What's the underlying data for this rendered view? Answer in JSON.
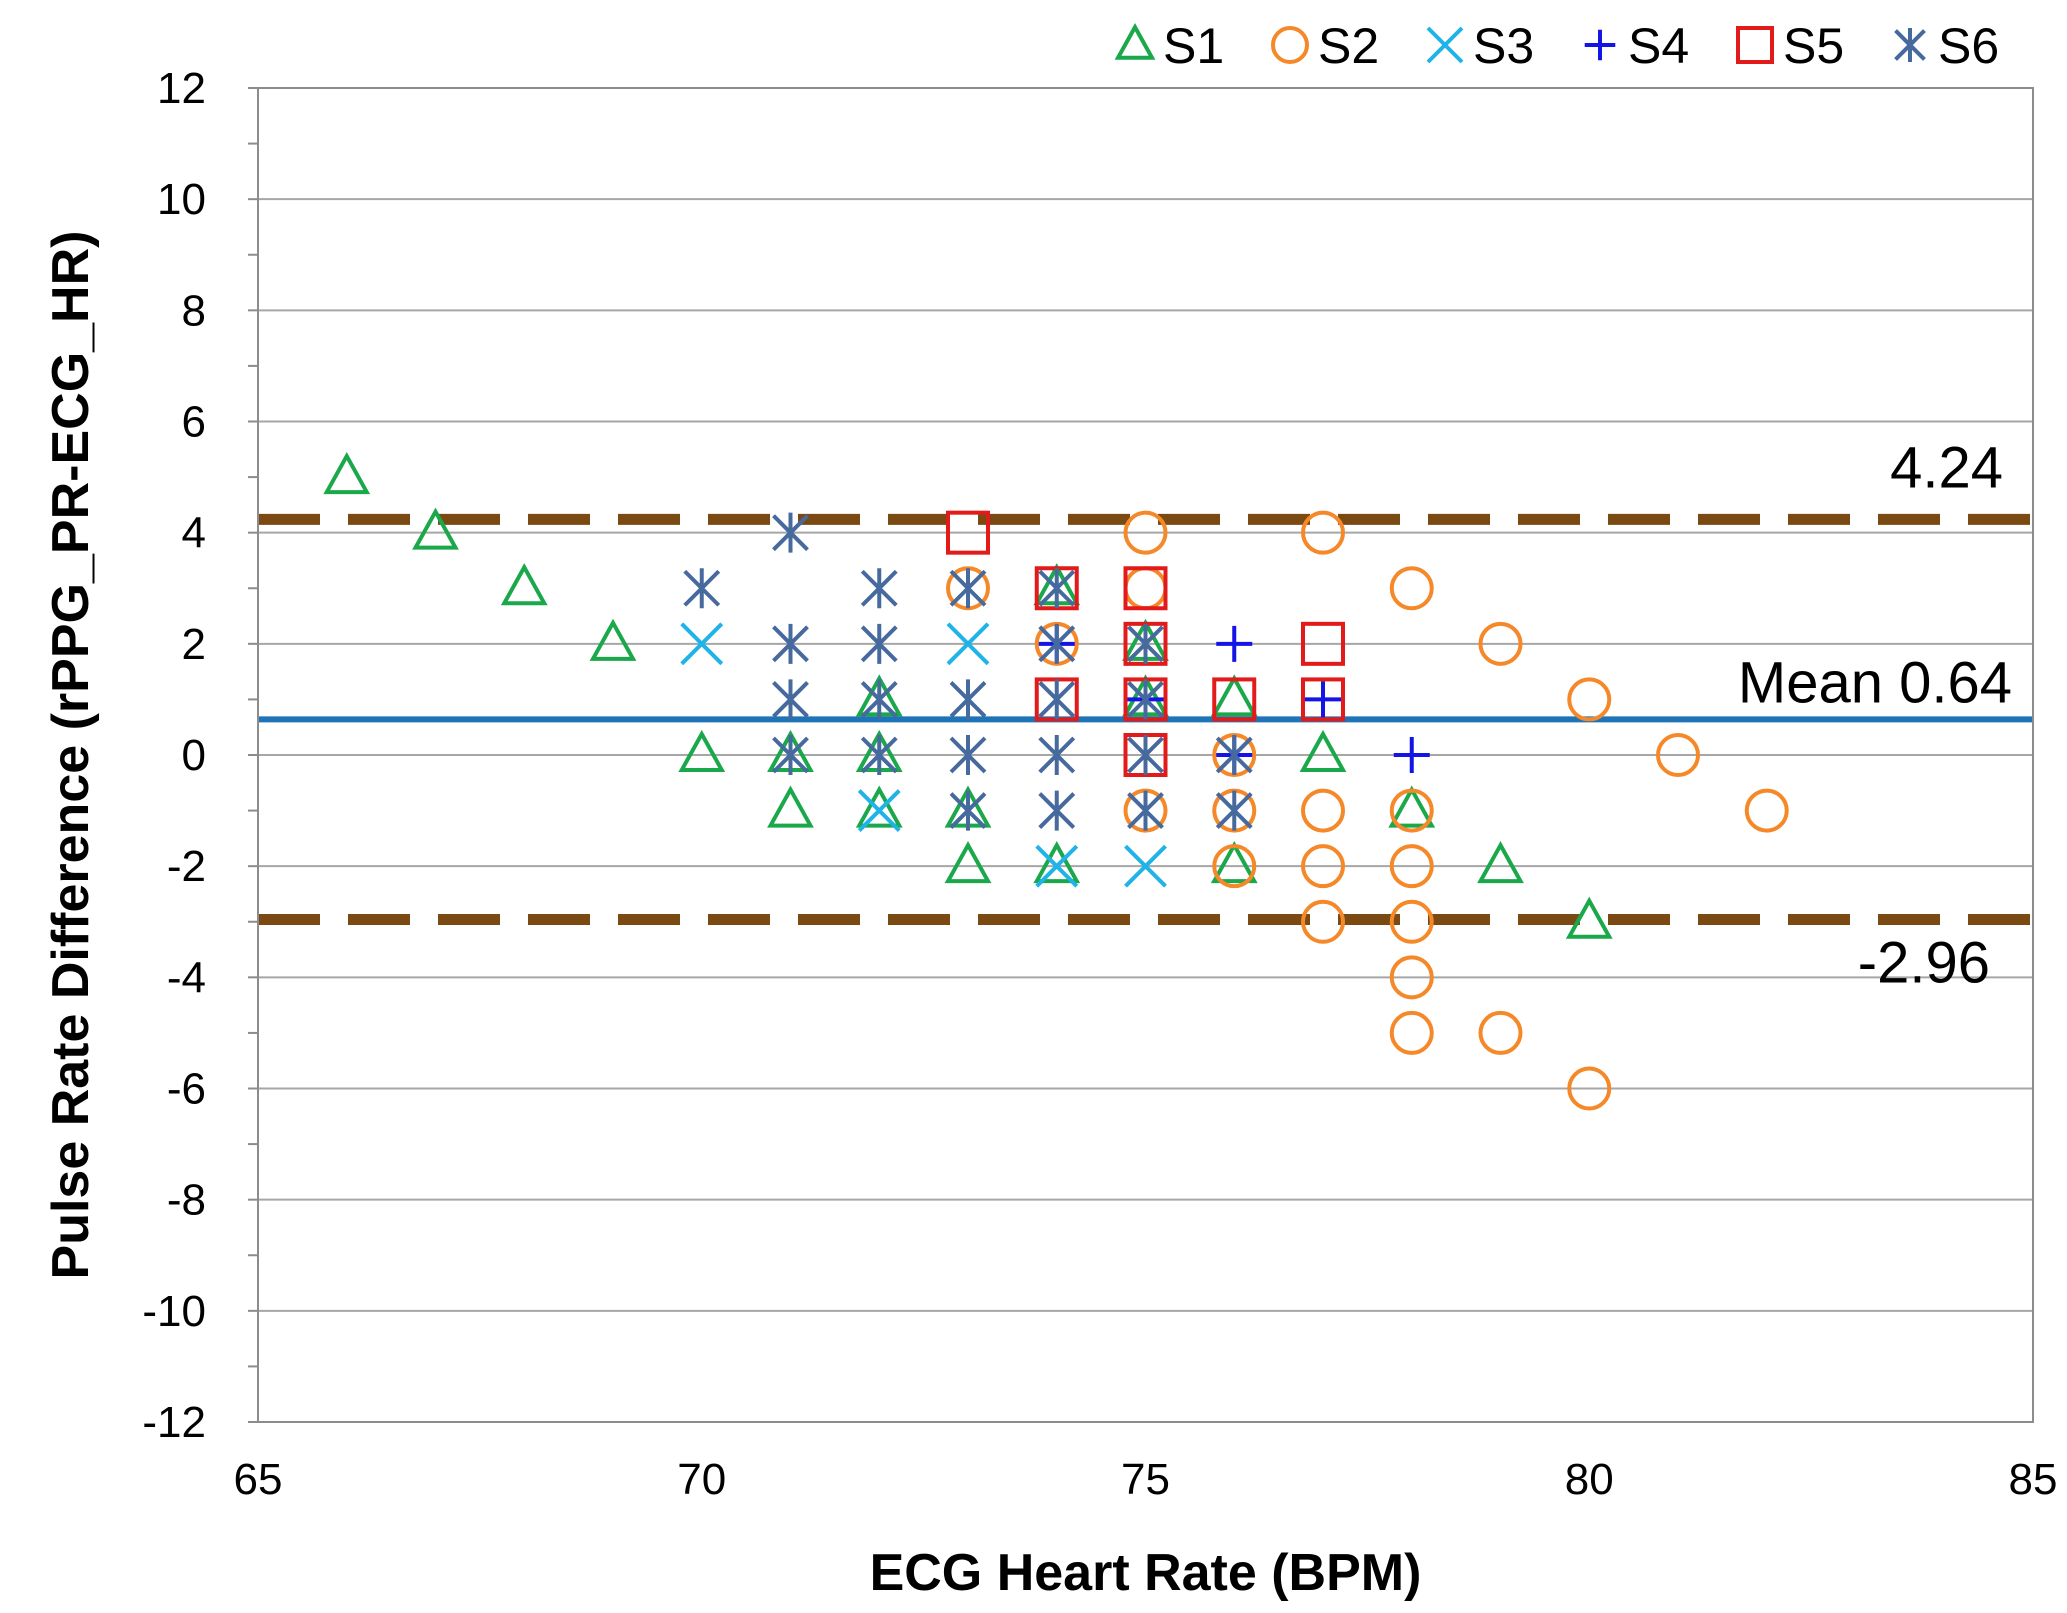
{
  "chart_data": {
    "type": "scatter",
    "title": "",
    "xlabel": "ECG Heart Rate (BPM)",
    "ylabel": "Pulse Rate Difference (rPPG_PR-ECG_HR)",
    "xlim": [
      65,
      85
    ],
    "ylim": [
      -12,
      12
    ],
    "xticks": [
      65,
      70,
      75,
      80,
      85
    ],
    "yticks": [
      -12,
      -10,
      -8,
      -6,
      -4,
      -2,
      0,
      2,
      4,
      6,
      8,
      10,
      12
    ],
    "grid": "horizontal",
    "legend_position": "top-right",
    "series": [
      {
        "name": "S1",
        "marker": "triangle",
        "color": "#1aa84a",
        "points": [
          [
            66,
            5
          ],
          [
            67,
            4
          ],
          [
            68,
            3
          ],
          [
            69,
            2
          ],
          [
            70,
            0
          ],
          [
            71,
            0
          ],
          [
            71,
            -1
          ],
          [
            72,
            1
          ],
          [
            72,
            0
          ],
          [
            72,
            -1
          ],
          [
            73,
            -1
          ],
          [
            73,
            -2
          ],
          [
            74,
            3
          ],
          [
            74,
            -2
          ],
          [
            75,
            2
          ],
          [
            75,
            1
          ],
          [
            76,
            1
          ],
          [
            76,
            -2
          ],
          [
            77,
            0
          ],
          [
            78,
            -1
          ],
          [
            79,
            -2
          ],
          [
            80,
            -3
          ]
        ]
      },
      {
        "name": "S2",
        "marker": "circle",
        "color": "#f5892a",
        "points": [
          [
            73,
            3
          ],
          [
            74,
            2
          ],
          [
            75,
            4
          ],
          [
            75,
            3
          ],
          [
            75,
            -1
          ],
          [
            76,
            0
          ],
          [
            76,
            -1
          ],
          [
            76,
            -2
          ],
          [
            77,
            4
          ],
          [
            77,
            -1
          ],
          [
            77,
            -2
          ],
          [
            77,
            -3
          ],
          [
            78,
            3
          ],
          [
            78,
            -1
          ],
          [
            78,
            -2
          ],
          [
            78,
            -3
          ],
          [
            78,
            -4
          ],
          [
            78,
            -5
          ],
          [
            79,
            2
          ],
          [
            79,
            -5
          ],
          [
            80,
            1
          ],
          [
            80,
            -6
          ],
          [
            81,
            0
          ],
          [
            82,
            -1
          ]
        ]
      },
      {
        "name": "S3",
        "marker": "x",
        "color": "#1fb3e8",
        "points": [
          [
            70,
            2
          ],
          [
            72,
            -1
          ],
          [
            73,
            2
          ],
          [
            74,
            -2
          ],
          [
            75,
            -2
          ]
        ]
      },
      {
        "name": "S4",
        "marker": "plus",
        "color": "#1414e6",
        "points": [
          [
            74,
            2
          ],
          [
            75,
            1
          ],
          [
            76,
            2
          ],
          [
            76,
            0
          ],
          [
            77,
            1
          ],
          [
            78,
            0
          ]
        ]
      },
      {
        "name": "S5",
        "marker": "square",
        "color": "#e21a1a",
        "points": [
          [
            73,
            4
          ],
          [
            74,
            3
          ],
          [
            74,
            1
          ],
          [
            75,
            3
          ],
          [
            75,
            2
          ],
          [
            75,
            1
          ],
          [
            75,
            0
          ],
          [
            76,
            1
          ],
          [
            77,
            2
          ],
          [
            77,
            1
          ]
        ]
      },
      {
        "name": "S6",
        "marker": "asterisk",
        "color": "#46699e",
        "points": [
          [
            70,
            3
          ],
          [
            71,
            4
          ],
          [
            71,
            2
          ],
          [
            71,
            1
          ],
          [
            71,
            0
          ],
          [
            72,
            3
          ],
          [
            72,
            2
          ],
          [
            72,
            1
          ],
          [
            72,
            0
          ],
          [
            73,
            3
          ],
          [
            73,
            1
          ],
          [
            73,
            0
          ],
          [
            73,
            -1
          ],
          [
            74,
            3
          ],
          [
            74,
            2
          ],
          [
            74,
            1
          ],
          [
            74,
            0
          ],
          [
            74,
            -1
          ],
          [
            75,
            2
          ],
          [
            75,
            1
          ],
          [
            75,
            0
          ],
          [
            75,
            -1
          ],
          [
            76,
            0
          ],
          [
            76,
            -1
          ]
        ]
      }
    ],
    "reference_lines": [
      {
        "name": "upper-limit",
        "y": 4.24,
        "label": "4.24",
        "style": "dashed",
        "color": "#7b4a12"
      },
      {
        "name": "mean",
        "y": 0.64,
        "label": "Mean 0.64",
        "style": "solid",
        "color": "#1f73b7"
      },
      {
        "name": "lower-limit",
        "y": -2.96,
        "label": "-2.96",
        "style": "dashed",
        "color": "#7b4a12"
      }
    ]
  }
}
